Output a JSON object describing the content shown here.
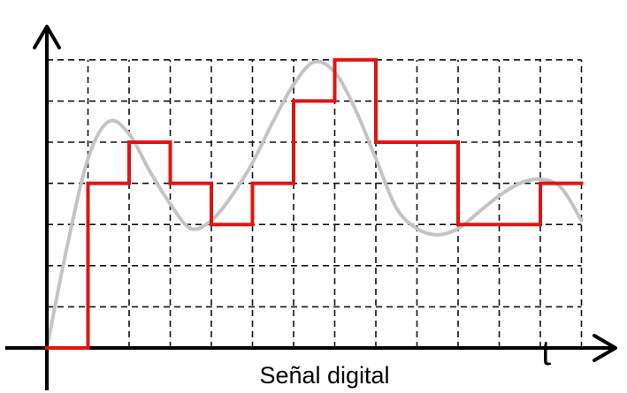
{
  "diagram": {
    "caption": "Señal digital",
    "x_axis_label": "t",
    "colors": {
      "digital_signal": "#e01414",
      "analog_signal": "#c4c4c4",
      "grid": "#111111",
      "axes": "#000000"
    },
    "grid": {
      "columns": 13,
      "rows": 7
    },
    "digital_levels": [
      0,
      4,
      5,
      4,
      3,
      4,
      6,
      7,
      5,
      5,
      3,
      3,
      4,
      4
    ],
    "analog_samples": [
      [
        0.0,
        0.0
      ],
      [
        0.5,
        2.5
      ],
      [
        1.0,
        4.6
      ],
      [
        1.5,
        5.5
      ],
      [
        2.0,
        5.2
      ],
      [
        2.5,
        4.3
      ],
      [
        3.0,
        3.5
      ],
      [
        3.5,
        2.9
      ],
      [
        4.0,
        3.1
      ],
      [
        4.5,
        3.7
      ],
      [
        5.0,
        4.5
      ],
      [
        5.5,
        5.5
      ],
      [
        6.0,
        6.4
      ],
      [
        6.5,
        6.95
      ],
      [
        7.0,
        6.7
      ],
      [
        7.5,
        5.8
      ],
      [
        8.0,
        4.6
      ],
      [
        8.5,
        3.4
      ],
      [
        9.0,
        2.9
      ],
      [
        9.5,
        2.75
      ],
      [
        10.0,
        2.9
      ],
      [
        10.5,
        3.3
      ],
      [
        11.0,
        3.7
      ],
      [
        11.5,
        4.0
      ],
      [
        12.0,
        4.1
      ],
      [
        12.5,
        3.9
      ],
      [
        13.0,
        3.1
      ]
    ]
  }
}
